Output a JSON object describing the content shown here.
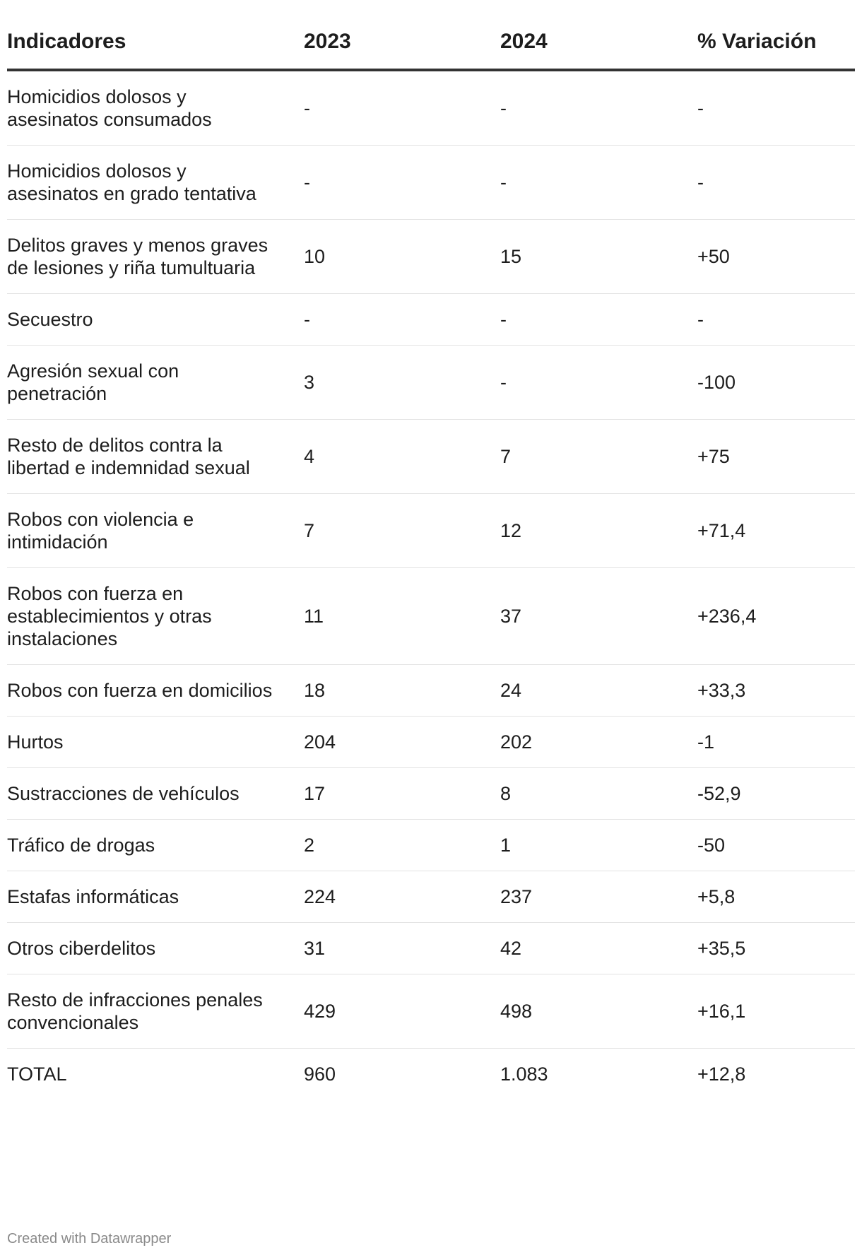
{
  "chart_data": {
    "type": "table",
    "columns": [
      "Indicadores",
      "2023",
      "2024",
      "% Variación"
    ],
    "rows": [
      [
        "Homicidios dolosos y asesinatos consumados",
        "-",
        "-",
        "-"
      ],
      [
        "Homicidios dolosos y asesinatos en grado tentativa",
        "-",
        "-",
        "-"
      ],
      [
        "Delitos graves y menos graves de lesiones y riña tumultuaria",
        "10",
        "15",
        "+50"
      ],
      [
        "Secuestro",
        "-",
        "-",
        "-"
      ],
      [
        "Agresión sexual con penetración",
        "3",
        "-",
        "-100"
      ],
      [
        "Resto de delitos contra la libertad e indemnidad sexual",
        "4",
        "7",
        "+75"
      ],
      [
        "Robos con violencia e intimidación",
        "7",
        "12",
        "+71,4"
      ],
      [
        "Robos con fuerza en establecimientos y otras instalaciones",
        "11",
        "37",
        "+236,4"
      ],
      [
        "Robos con fuerza en domicilios",
        "18",
        "24",
        "+33,3"
      ],
      [
        "Hurtos",
        "204",
        "202",
        "-1"
      ],
      [
        "Sustracciones de vehículos",
        "17",
        "8",
        "-52,9"
      ],
      [
        "Tráfico de drogas",
        "2",
        "1",
        "-50"
      ],
      [
        "Estafas informáticas",
        "224",
        "237",
        "+5,8"
      ],
      [
        "Otros ciberdelitos",
        "31",
        "42",
        "+35,5"
      ],
      [
        "Resto de infracciones penales convencionales",
        "429",
        "498",
        "+16,1"
      ],
      [
        "TOTAL",
        "960",
        "1.083",
        "+12,8"
      ]
    ]
  },
  "footer": {
    "credit": "Created with Datawrapper"
  },
  "colors": {
    "text": "#1d1d1d",
    "header_rule": "#333333",
    "row_rule": "#e3e3e3",
    "footer_text": "#8a8a8a"
  }
}
